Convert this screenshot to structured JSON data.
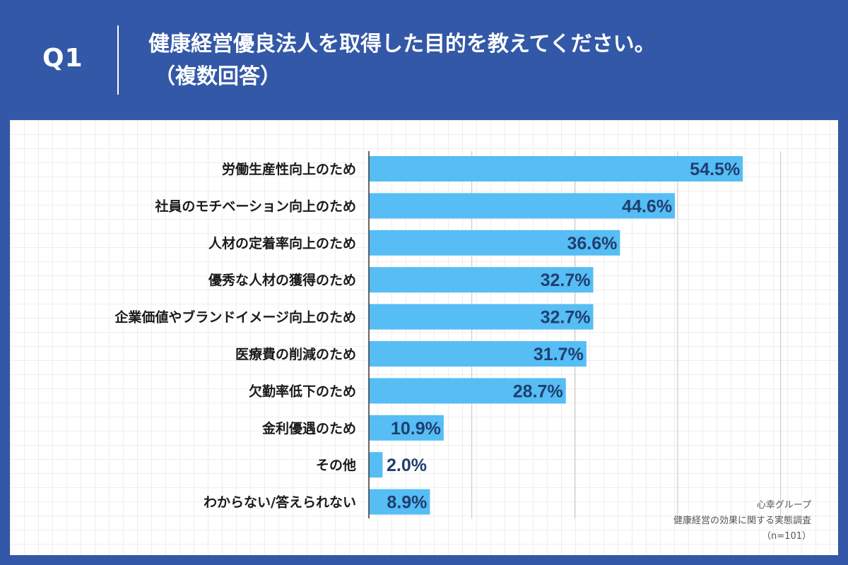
{
  "header": {
    "question_no": "Q1",
    "title": "健康経営優良法人を取得した目的を教えてください。",
    "subtitle": "（複数回答）"
  },
  "source": {
    "company": "心幸グループ",
    "survey": "健康経営の効果に関する実態調査",
    "sample": "（n=101）"
  },
  "colors": {
    "background": "#3358a7",
    "bar": "#56bdf5",
    "value_text": "#1f3f6e"
  },
  "chart_data": {
    "type": "bar",
    "orientation": "horizontal",
    "categories": [
      "労働生産性向上のため",
      "社員のモチベーション向上のため",
      "人材の定着率向上のため",
      "優秀な人材の獲得のため",
      "企業価値やブランドイメージ向上のため",
      "医療費の削減のため",
      "欠勤率低下のため",
      "金利優遇のため",
      "その他",
      "わからない/答えられない"
    ],
    "values": [
      54.5,
      44.6,
      36.6,
      32.7,
      32.7,
      31.7,
      28.7,
      10.9,
      2.0,
      8.9
    ],
    "value_labels": [
      "54.5%",
      "44.6%",
      "36.6%",
      "32.7%",
      "32.7%",
      "31.7%",
      "28.7%",
      "10.9%",
      "2.0%",
      "8.9%"
    ],
    "xlim": [
      0,
      60
    ],
    "grid": true
  }
}
